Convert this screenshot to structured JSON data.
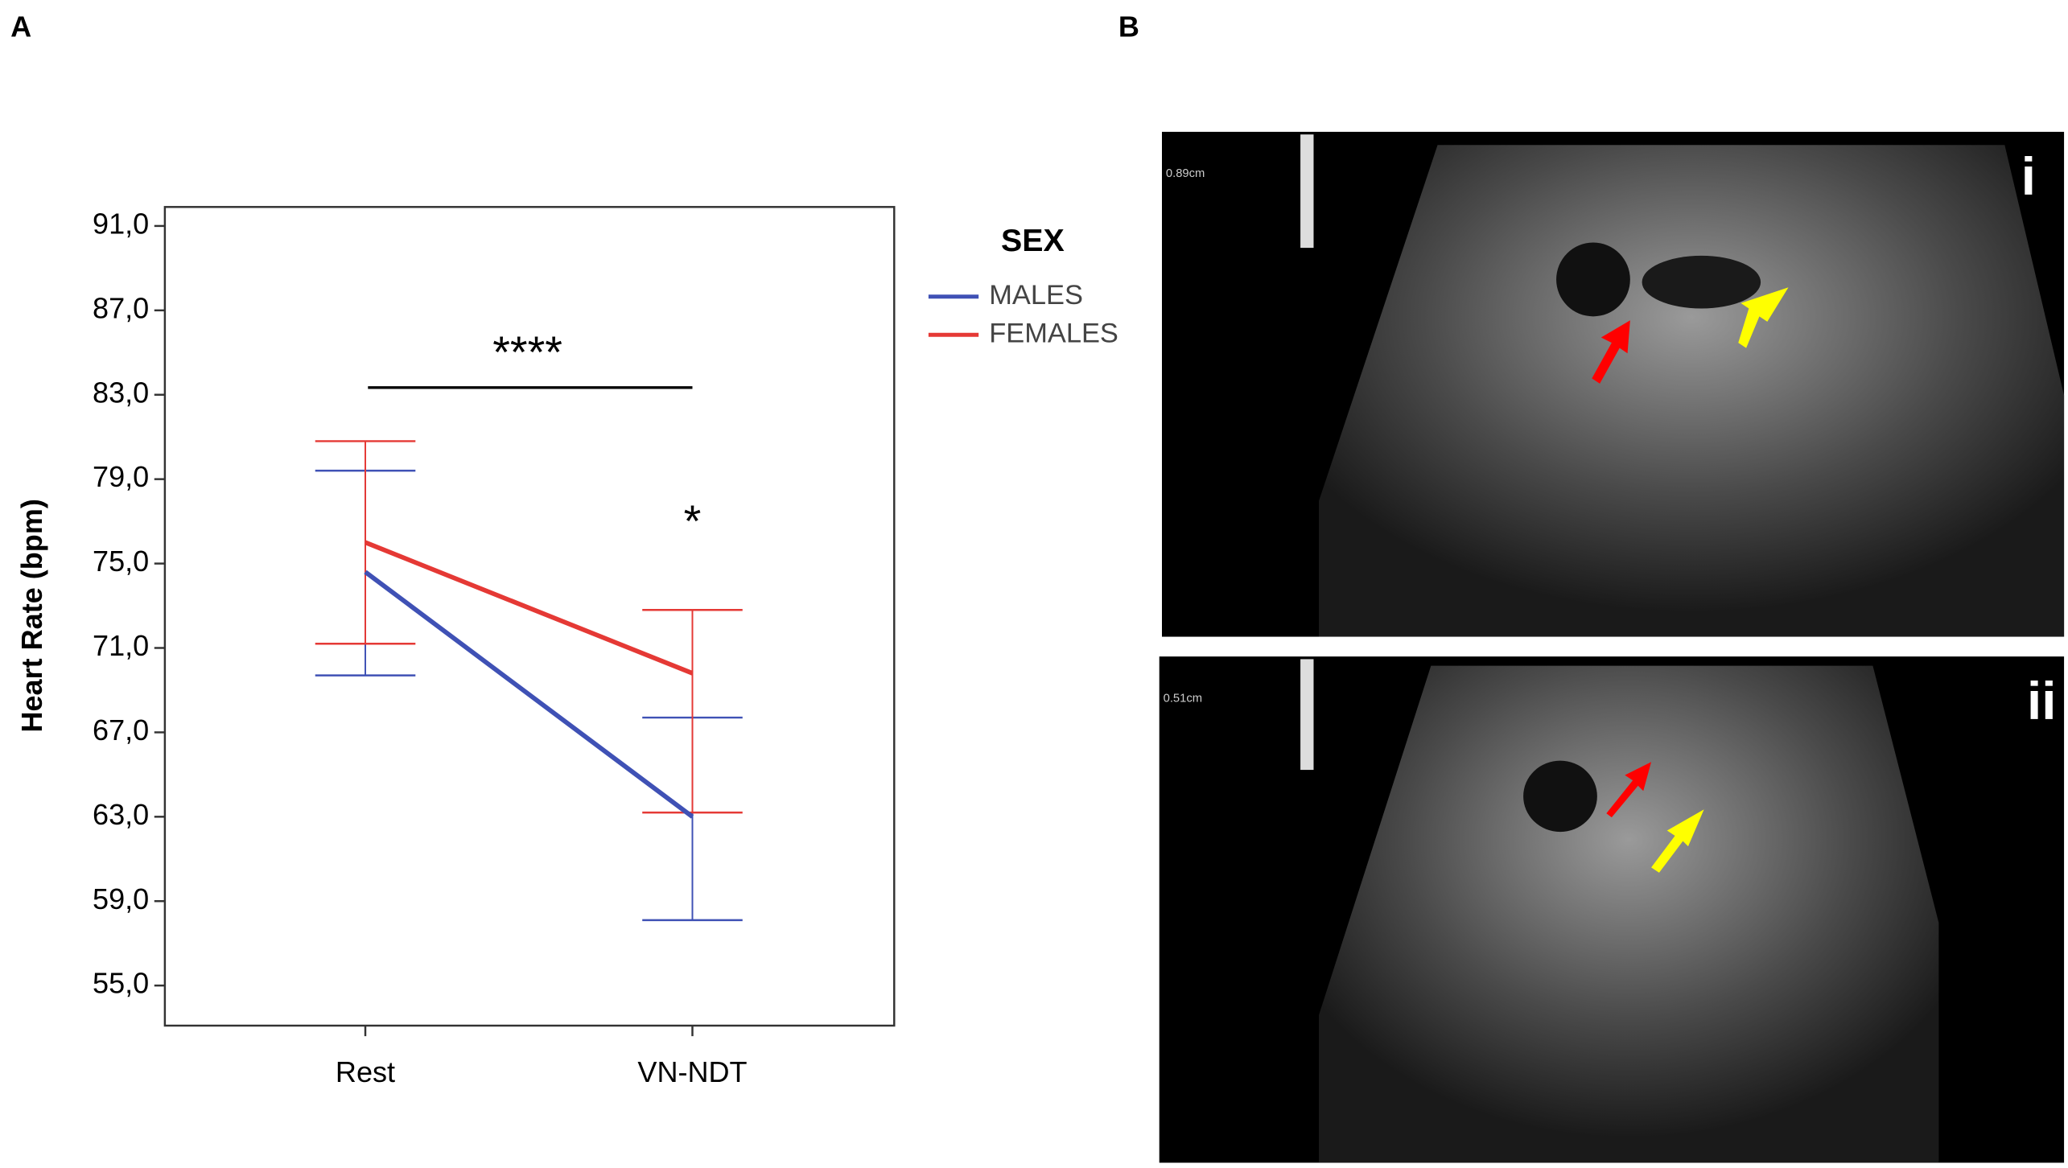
{
  "panel_a": {
    "label": "A"
  },
  "chart_data": {
    "type": "line",
    "y_label": "Heart Rate (bpm)",
    "legend_title": "SEX",
    "categories": [
      "Rest",
      "VN-NDT"
    ],
    "series": [
      {
        "name": "MALES",
        "color": "#3f51b5",
        "values": [
          74.6,
          63.0
        ],
        "upper": [
          79.4,
          67.7
        ],
        "lower": [
          69.7,
          58.1
        ]
      },
      {
        "name": "FEMALES",
        "color": "#e53935",
        "values": [
          76.0,
          69.8
        ],
        "upper": [
          80.8,
          72.8
        ],
        "lower": [
          71.2,
          63.2
        ]
      }
    ],
    "ylim": [
      53.1,
      91.9
    ],
    "yticks": [
      {
        "value": 55,
        "label": "55,0"
      },
      {
        "value": 59,
        "label": "59,0"
      },
      {
        "value": 63,
        "label": "63,0"
      },
      {
        "value": 67,
        "label": "67,0"
      },
      {
        "value": 71,
        "label": "71,0"
      },
      {
        "value": 75,
        "label": "75,0"
      },
      {
        "value": 79,
        "label": "79,0"
      },
      {
        "value": 83,
        "label": "83,0"
      },
      {
        "value": 87,
        "label": "87,0"
      },
      {
        "value": 91,
        "label": "91,0"
      }
    ],
    "annotations": [
      "****",
      "*"
    ]
  },
  "panel_b": {
    "label": "B",
    "images": [
      {
        "scale": "0.89cm",
        "label": "i"
      },
      {
        "scale": "0.51cm",
        "label": "ii"
      }
    ]
  }
}
